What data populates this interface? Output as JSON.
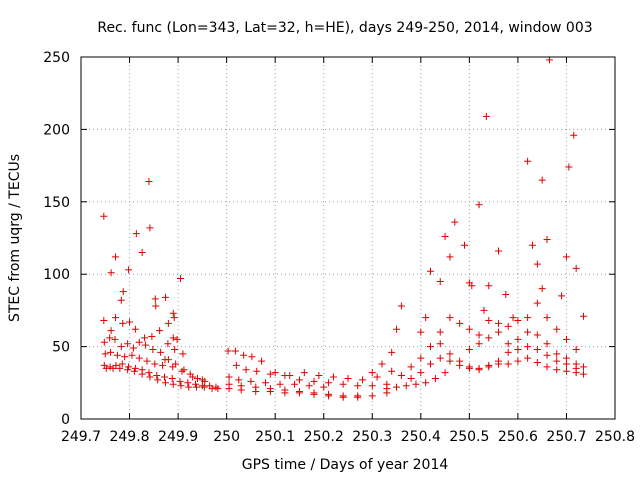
{
  "chart_data": {
    "type": "scatter",
    "title": "Rec. func (Lon=343, Lat=32, h=HE), days 249-250, 2014, window 003",
    "xlabel": "GPS time / Days of year 2014",
    "ylabel": "STEC from uqrg / TECUs",
    "xlim": [
      249.7,
      250.8
    ],
    "ylim": [
      0,
      250
    ],
    "xticks": [
      249.7,
      249.8,
      249.9,
      250.0,
      250.1,
      250.2,
      250.3,
      250.4,
      250.5,
      250.6,
      250.7,
      250.8
    ],
    "xtick_labels": [
      "249.7",
      "249.8",
      "249.9",
      "250",
      "250.1",
      "250.2",
      "250.3",
      "250.4",
      "250.5",
      "250.6",
      "250.7",
      "250.8"
    ],
    "yticks": [
      0,
      50,
      100,
      150,
      200,
      250
    ],
    "ytick_labels": [
      "0",
      "50",
      "100",
      "150",
      "200",
      "250"
    ],
    "grid": true,
    "marker": "+",
    "color": "#e00000",
    "axis_color": "#000000",
    "grid_color": "#a0a0a0",
    "series": [
      {
        "name": "STEC",
        "points": [
          [
            249.747,
            140
          ],
          [
            249.762,
            101
          ],
          [
            249.771,
            112
          ],
          [
            249.787,
            88
          ],
          [
            249.783,
            82
          ],
          [
            249.798,
            103
          ],
          [
            249.814,
            128
          ],
          [
            249.826,
            115
          ],
          [
            249.84,
            164
          ],
          [
            249.842,
            132
          ],
          [
            249.853,
            83
          ],
          [
            249.854,
            78
          ],
          [
            249.874,
            84
          ],
          [
            249.89,
            73
          ],
          [
            249.905,
            97
          ],
          [
            249.892,
            70
          ],
          [
            249.747,
            68
          ],
          [
            249.762,
            61
          ],
          [
            249.771,
            70
          ],
          [
            249.786,
            66
          ],
          [
            249.8,
            67
          ],
          [
            249.812,
            62
          ],
          [
            249.831,
            56
          ],
          [
            249.846,
            57
          ],
          [
            249.862,
            61
          ],
          [
            249.88,
            66
          ],
          [
            249.89,
            56
          ],
          [
            249.898,
            55
          ],
          [
            249.748,
            53
          ],
          [
            249.759,
            56
          ],
          [
            249.77,
            55
          ],
          [
            249.783,
            50
          ],
          [
            249.796,
            52
          ],
          [
            249.808,
            49
          ],
          [
            249.82,
            53
          ],
          [
            249.833,
            51
          ],
          [
            249.848,
            48
          ],
          [
            249.864,
            46
          ],
          [
            249.879,
            52
          ],
          [
            249.893,
            48
          ],
          [
            249.91,
            45
          ],
          [
            249.75,
            45
          ],
          [
            249.761,
            46
          ],
          [
            249.775,
            44
          ],
          [
            249.79,
            43
          ],
          [
            249.805,
            44
          ],
          [
            249.82,
            42
          ],
          [
            249.836,
            40
          ],
          [
            249.852,
            38
          ],
          [
            249.868,
            37
          ],
          [
            249.88,
            41
          ],
          [
            249.895,
            38
          ],
          [
            249.912,
            34
          ],
          [
            249.925,
            31
          ],
          [
            249.94,
            28
          ],
          [
            249.955,
            26
          ],
          [
            249.748,
            37
          ],
          [
            249.76,
            36
          ],
          [
            249.772,
            37
          ],
          [
            249.785,
            38
          ],
          [
            249.798,
            36
          ],
          [
            249.812,
            35
          ],
          [
            249.826,
            34
          ],
          [
            249.84,
            32
          ],
          [
            249.856,
            30
          ],
          [
            249.872,
            29
          ],
          [
            249.888,
            28
          ],
          [
            249.904,
            26
          ],
          [
            249.92,
            25
          ],
          [
            249.936,
            24
          ],
          [
            249.95,
            23
          ],
          [
            249.965,
            23
          ],
          [
            249.978,
            22
          ],
          [
            249.752,
            35
          ],
          [
            249.766,
            35
          ],
          [
            249.78,
            35
          ],
          [
            249.796,
            34
          ],
          [
            249.81,
            33
          ],
          [
            249.826,
            31
          ],
          [
            249.842,
            29
          ],
          [
            249.858,
            27
          ],
          [
            249.874,
            25
          ],
          [
            249.89,
            24
          ],
          [
            249.906,
            23
          ],
          [
            249.922,
            22
          ],
          [
            249.938,
            22
          ],
          [
            249.954,
            22
          ],
          [
            249.97,
            21
          ],
          [
            249.982,
            21
          ],
          [
            249.873,
            41
          ],
          [
            249.889,
            36
          ],
          [
            249.908,
            33
          ],
          [
            249.93,
            29
          ],
          [
            249.95,
            27
          ],
          [
            250.003,
            47
          ],
          [
            250.018,
            47
          ],
          [
            250.035,
            44
          ],
          [
            250.052,
            43
          ],
          [
            250.072,
            40
          ],
          [
            250.02,
            37
          ],
          [
            250.04,
            34
          ],
          [
            250.062,
            33
          ],
          [
            250.09,
            31
          ],
          [
            250.12,
            30
          ],
          [
            250.005,
            29
          ],
          [
            250.025,
            27
          ],
          [
            250.05,
            26
          ],
          [
            250.08,
            25
          ],
          [
            250.11,
            24
          ],
          [
            250.14,
            24
          ],
          [
            250.17,
            23
          ],
          [
            250.2,
            22
          ],
          [
            250.005,
            24
          ],
          [
            250.03,
            23
          ],
          [
            250.06,
            22
          ],
          [
            250.09,
            21
          ],
          [
            250.12,
            20
          ],
          [
            250.15,
            19
          ],
          [
            250.18,
            18
          ],
          [
            250.21,
            17
          ],
          [
            250.24,
            16
          ],
          [
            250.27,
            16
          ],
          [
            250.005,
            21
          ],
          [
            250.03,
            20
          ],
          [
            250.06,
            19
          ],
          [
            250.09,
            19
          ],
          [
            250.12,
            18
          ],
          [
            250.15,
            18
          ],
          [
            250.18,
            17
          ],
          [
            250.21,
            16
          ],
          [
            250.24,
            15
          ],
          [
            250.27,
            15
          ],
          [
            250.3,
            16
          ],
          [
            250.33,
            18
          ],
          [
            250.1,
            32
          ],
          [
            250.13,
            30
          ],
          [
            250.16,
            32
          ],
          [
            250.19,
            30
          ],
          [
            250.22,
            29
          ],
          [
            250.25,
            28
          ],
          [
            250.28,
            27
          ],
          [
            250.31,
            29
          ],
          [
            250.34,
            33
          ],
          [
            250.15,
            27
          ],
          [
            250.18,
            26
          ],
          [
            250.21,
            25
          ],
          [
            250.24,
            24
          ],
          [
            250.27,
            23
          ],
          [
            250.3,
            23
          ],
          [
            250.33,
            24
          ],
          [
            250.3,
            32
          ],
          [
            250.32,
            38
          ],
          [
            250.34,
            46
          ],
          [
            250.35,
            62
          ],
          [
            250.36,
            78
          ],
          [
            250.33,
            21
          ],
          [
            250.35,
            22
          ],
          [
            250.37,
            23
          ],
          [
            250.39,
            24
          ],
          [
            250.41,
            25
          ],
          [
            250.43,
            28
          ],
          [
            250.45,
            32
          ],
          [
            250.36,
            30
          ],
          [
            250.38,
            36
          ],
          [
            250.4,
            42
          ],
          [
            250.42,
            50
          ],
          [
            250.44,
            52
          ],
          [
            250.46,
            45
          ],
          [
            250.48,
            40
          ],
          [
            250.5,
            36
          ],
          [
            250.52,
            35
          ],
          [
            250.54,
            37
          ],
          [
            250.56,
            40
          ],
          [
            250.58,
            46
          ],
          [
            250.6,
            55
          ],
          [
            250.62,
            60
          ],
          [
            250.64,
            58
          ],
          [
            250.66,
            52
          ],
          [
            250.68,
            45
          ],
          [
            250.7,
            42
          ],
          [
            250.72,
            38
          ],
          [
            250.735,
            36
          ],
          [
            250.38,
            28
          ],
          [
            250.4,
            32
          ],
          [
            250.42,
            38
          ],
          [
            250.44,
            42
          ],
          [
            250.46,
            40
          ],
          [
            250.48,
            37
          ],
          [
            250.5,
            35
          ],
          [
            250.52,
            34
          ],
          [
            250.54,
            36
          ],
          [
            250.56,
            38
          ],
          [
            250.58,
            38
          ],
          [
            250.6,
            40
          ],
          [
            250.62,
            42
          ],
          [
            250.64,
            39
          ],
          [
            250.66,
            36
          ],
          [
            250.68,
            34
          ],
          [
            250.7,
            33
          ],
          [
            250.72,
            32
          ],
          [
            250.735,
            31
          ],
          [
            250.4,
            60
          ],
          [
            250.41,
            70
          ],
          [
            250.42,
            102
          ],
          [
            250.44,
            95
          ],
          [
            250.45,
            126
          ],
          [
            250.46,
            112
          ],
          [
            250.47,
            136
          ],
          [
            250.49,
            120
          ],
          [
            250.5,
            94
          ],
          [
            250.505,
            92
          ],
          [
            250.52,
            148
          ],
          [
            250.535,
            209
          ],
          [
            250.54,
            92
          ],
          [
            250.56,
            116
          ],
          [
            250.575,
            86
          ],
          [
            250.59,
            70
          ],
          [
            250.62,
            178
          ],
          [
            250.63,
            120
          ],
          [
            250.64,
            107
          ],
          [
            250.65,
            165
          ],
          [
            250.66,
            124
          ],
          [
            250.665,
            248
          ],
          [
            250.69,
            85
          ],
          [
            250.7,
            112
          ],
          [
            250.705,
            174
          ],
          [
            250.715,
            196
          ],
          [
            250.72,
            104
          ],
          [
            250.735,
            71
          ],
          [
            250.44,
            60
          ],
          [
            250.46,
            70
          ],
          [
            250.48,
            66
          ],
          [
            250.5,
            62
          ],
          [
            250.52,
            58
          ],
          [
            250.53,
            75
          ],
          [
            250.54,
            68
          ],
          [
            250.56,
            66
          ],
          [
            250.58,
            64
          ],
          [
            250.6,
            68
          ],
          [
            250.62,
            70
          ],
          [
            250.64,
            80
          ],
          [
            250.65,
            90
          ],
          [
            250.66,
            70
          ],
          [
            250.68,
            62
          ],
          [
            250.7,
            55
          ],
          [
            250.72,
            48
          ],
          [
            250.5,
            48
          ],
          [
            250.52,
            52
          ],
          [
            250.54,
            56
          ],
          [
            250.56,
            60
          ],
          [
            250.58,
            52
          ],
          [
            250.6,
            48
          ],
          [
            250.62,
            50
          ],
          [
            250.64,
            48
          ],
          [
            250.66,
            44
          ],
          [
            250.68,
            40
          ],
          [
            250.7,
            38
          ],
          [
            250.72,
            35
          ]
        ]
      }
    ]
  }
}
